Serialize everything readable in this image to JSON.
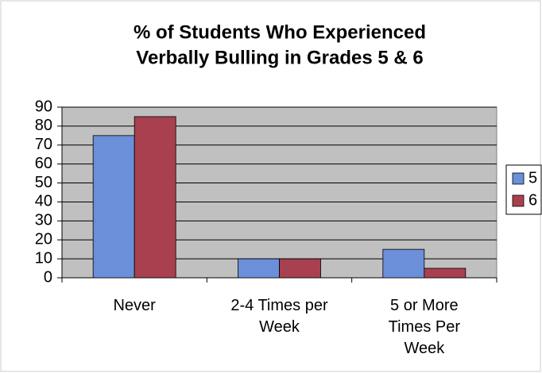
{
  "chart_data": {
    "type": "bar",
    "title": [
      "% of Students Who Experienced",
      "Verbally Bulling in Grades 5 & 6"
    ],
    "categories": [
      "Never",
      "2-4 Times per Week",
      "5 or More Times Per Week"
    ],
    "series": [
      {
        "name": "5",
        "color": "#6b8fd8",
        "values": [
          75,
          10,
          15
        ]
      },
      {
        "name": "6",
        "color": "#a8404f",
        "values": [
          85,
          10,
          5
        ]
      }
    ],
    "ylim": [
      0,
      90
    ],
    "yticks": [
      0,
      10,
      20,
      30,
      40,
      50,
      60,
      70,
      80,
      90
    ],
    "grid": true,
    "legend": "right"
  }
}
